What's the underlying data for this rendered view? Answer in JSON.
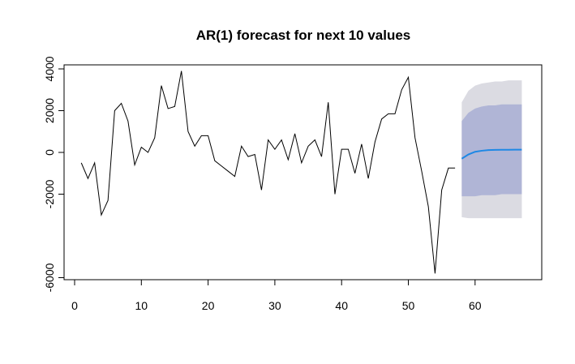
{
  "chart_data": {
    "type": "line",
    "title": "AR(1) forecast for next 10 values",
    "xlabel": "",
    "ylabel": "",
    "xlim": [
      1,
      67
    ],
    "ylim": [
      -6200,
      4200
    ],
    "x_ticks": [
      0,
      10,
      20,
      30,
      40,
      50,
      60
    ],
    "y_ticks": [
      -6000,
      -2000,
      0,
      2000,
      4000
    ],
    "observed": {
      "x": [
        1,
        2,
        3,
        4,
        5,
        6,
        7,
        8,
        9,
        10,
        11,
        12,
        13,
        14,
        15,
        16,
        17,
        18,
        19,
        20,
        21,
        22,
        23,
        24,
        25,
        26,
        27,
        28,
        29,
        30,
        31,
        32,
        33,
        34,
        35,
        36,
        37,
        38,
        39,
        40,
        41,
        42,
        43,
        44,
        45,
        46,
        47,
        48,
        49,
        50,
        51,
        52,
        53,
        54,
        55,
        56,
        57
      ],
      "y": [
        -500,
        -1250,
        -500,
        -3000,
        -2300,
        2000,
        2350,
        1500,
        -600,
        250,
        0,
        700,
        3200,
        2100,
        2200,
        3900,
        1000,
        300,
        800,
        800,
        -400,
        -650,
        -900,
        -1150,
        300,
        -200,
        -100,
        -1800,
        600,
        150,
        600,
        -350,
        900,
        -500,
        300,
        600,
        -200,
        2400,
        -2000,
        150,
        150,
        -1000,
        400,
        -1250,
        500,
        1600,
        1850,
        1850,
        3000,
        3600,
        700,
        -900,
        -2600,
        -5800,
        -1800,
        -750,
        -750
      ]
    },
    "forecast": {
      "x": [
        58,
        59,
        60,
        61,
        62,
        63,
        64,
        65,
        66,
        67
      ],
      "y": [
        -300,
        -100,
        30,
        80,
        110,
        120,
        125,
        128,
        130,
        130
      ],
      "lower80": [
        -2100,
        -2100,
        -2100,
        -2050,
        -2050,
        -2050,
        -2000,
        -2000,
        -2000,
        -2000
      ],
      "upper80": [
        1500,
        1900,
        2100,
        2200,
        2250,
        2250,
        2300,
        2300,
        2300,
        2300
      ],
      "lower95": [
        -3100,
        -3150,
        -3150,
        -3150,
        -3150,
        -3150,
        -3150,
        -3150,
        -3150,
        -3150
      ],
      "upper95": [
        2400,
        2950,
        3200,
        3300,
        3350,
        3400,
        3400,
        3450,
        3450,
        3450
      ]
    },
    "colors": {
      "observed": "#000000",
      "forecast": "#1e88e5",
      "band95": "#dbdbe2",
      "band80": "#b0b5d6",
      "axis": "#000000"
    },
    "grid": false,
    "legend": "none"
  }
}
